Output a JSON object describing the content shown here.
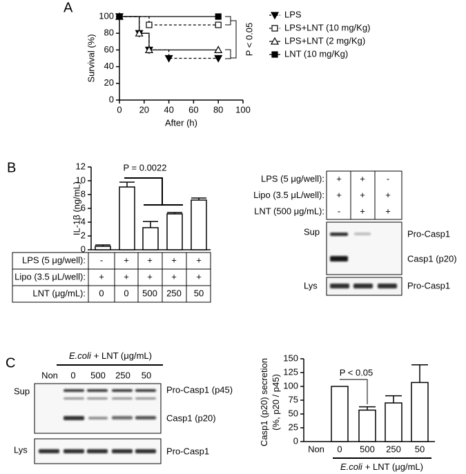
{
  "labels": {
    "a": "A",
    "b": "B",
    "c": "C"
  },
  "chart_data": [
    {
      "type": "line",
      "step": true,
      "xlabel": "After (h)",
      "ylabel": "Survival (%)",
      "xlim": [
        0,
        100
      ],
      "xticks": [
        0,
        20,
        40,
        60,
        80,
        100
      ],
      "ylim": [
        0,
        100
      ],
      "yticks": [
        0,
        20,
        40,
        60,
        80,
        100
      ],
      "annotation": "P < 0.05",
      "series": [
        {
          "name": "LPS",
          "color": "#000000",
          "marker": "triangle-down",
          "filled": true,
          "dashed": true,
          "x": [
            0,
            16,
            24,
            40,
            80
          ],
          "values": [
            100,
            80,
            60,
            50,
            50
          ]
        },
        {
          "name": "LPS+LNT (10 mg/Kg)",
          "color": "#000000",
          "marker": "square",
          "filled": false,
          "dashed": true,
          "x": [
            0,
            24,
            80
          ],
          "values": [
            100,
            90,
            90
          ]
        },
        {
          "name": "LPS+LNT (2 mg/Kg)",
          "color": "#000000",
          "marker": "triangle-up",
          "filled": false,
          "dashed": false,
          "x": [
            0,
            16,
            24,
            80
          ],
          "values": [
            100,
            80,
            60,
            60
          ]
        },
        {
          "name": "LNT (10 mg/Kg)",
          "color": "#000000",
          "marker": "square",
          "filled": true,
          "dashed": false,
          "x": [
            0,
            80
          ],
          "values": [
            100,
            100
          ]
        }
      ]
    },
    {
      "type": "bar",
      "ylabel": "IL-1β (ng/mL)",
      "ylim": [
        0,
        12
      ],
      "yticks": [
        0,
        2,
        4,
        6,
        8,
        10,
        12
      ],
      "categories": [
        null,
        null,
        null,
        null,
        null
      ],
      "values": [
        0.5,
        9.1,
        3.2,
        5.2,
        7.2
      ],
      "errors": [
        0.2,
        0.7,
        0.9,
        0.2,
        0.3
      ],
      "color": "#ffffff",
      "annotation": "P = 0.0022"
    },
    {
      "type": "bar",
      "ylabel": [
        "Casp1 (p20) secretion",
        "(%, p20 / p45)"
      ],
      "xlabel": [
        "E.coli",
        "+ LNT (μg/mL)"
      ],
      "ylim": [
        0,
        150
      ],
      "yticks": [
        0,
        25,
        50,
        75,
        100,
        125,
        150
      ],
      "categories": [
        "Non",
        "0",
        "500",
        "250",
        "50"
      ],
      "values": [
        null,
        100,
        57,
        70,
        107
      ],
      "errors": [
        null,
        null,
        6,
        13,
        32
      ],
      "color": "#ffffff",
      "annotation": "P < 0.05"
    }
  ],
  "table_b": {
    "rows": [
      {
        "label": "LPS (5 μg/well):",
        "cells": [
          "-",
          "+",
          "+",
          "+",
          "+"
        ]
      },
      {
        "label": "Lipo (3.5 μL/well):",
        "cells": [
          "+",
          "+",
          "+",
          "+",
          "+"
        ]
      },
      {
        "label": "LNT (μg/mL):",
        "cells": [
          "0",
          "0",
          "500",
          "250",
          "50"
        ]
      }
    ]
  },
  "blot_b": {
    "rows": [
      {
        "label": "LPS (5 μg/well):",
        "cells": [
          "+",
          "+",
          "-"
        ]
      },
      {
        "label": "Lipo (3.5 μL/well):",
        "cells": [
          "+",
          "+",
          "+"
        ]
      },
      {
        "label": "LNT (500 μg/mL):",
        "cells": [
          "-",
          "+",
          "+"
        ]
      }
    ],
    "sup": "Sup",
    "lys": "Lys",
    "bands": [
      "Pro-Casp1",
      "Casp1 (p20)",
      "Pro-Casp1"
    ]
  },
  "blot_c": {
    "header": [
      "E.coli",
      "+ LNT (μg/mL)"
    ],
    "lanes": [
      "Non",
      "0",
      "500",
      "250",
      "50"
    ],
    "sup": "Sup",
    "lys": "Lys",
    "bands": [
      "Pro-Casp1 (p45)",
      "Casp1 (p20)",
      "Pro-Casp1"
    ]
  }
}
